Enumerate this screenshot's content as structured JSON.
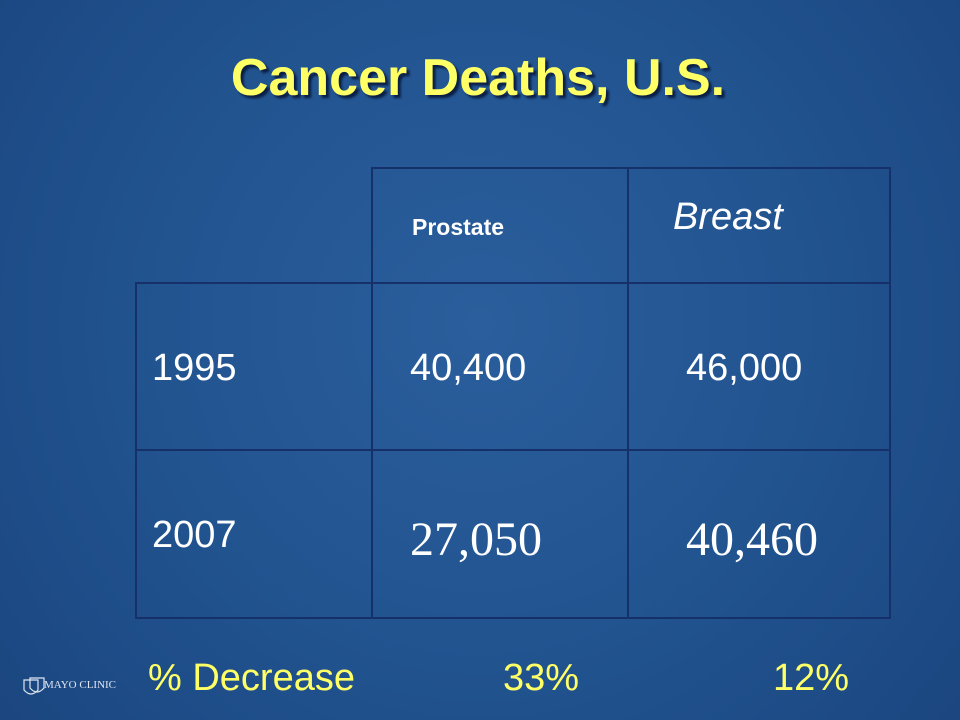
{
  "title": "Cancer Deaths, U.S.",
  "table": {
    "header": [
      "Prostate",
      "Breast"
    ],
    "rows": [
      [
        "1995",
        "40,400",
        "46,000"
      ],
      [
        "2007",
        "27,050",
        "40,460"
      ]
    ],
    "footer": [
      "% Decrease",
      "33%",
      "12%"
    ]
  },
  "logo": "MAYO CLINIC"
}
